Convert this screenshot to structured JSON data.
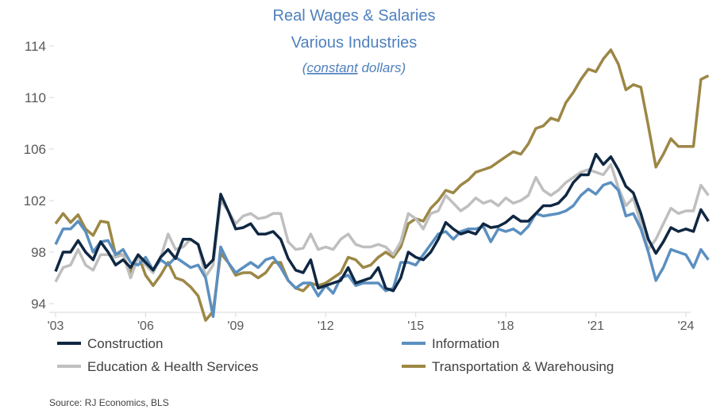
{
  "chart_data": {
    "type": "line",
    "title": "Real Wages & Salaries",
    "subtitle": "Various Industries",
    "note_underlined": "constant",
    "note_rest": " dollars)",
    "note_open": "(",
    "source": "Source: RJ Economics, BLS",
    "ylim": [
      92,
      114
    ],
    "yticks": [
      94,
      98,
      102,
      106,
      110,
      114
    ],
    "xlim": [
      2003,
      2024.3
    ],
    "xticks": [
      {
        "x": 2003,
        "label": "'03"
      },
      {
        "x": 2006,
        "label": "'06"
      },
      {
        "x": 2009,
        "label": "'09"
      },
      {
        "x": 2012,
        "label": "'12"
      },
      {
        "x": 2015,
        "label": "'15"
      },
      {
        "x": 2018,
        "label": "'18"
      },
      {
        "x": 2021,
        "label": "'21"
      },
      {
        "x": 2024,
        "label": "'24"
      }
    ],
    "x_start": 2003.0,
    "x_step": 0.25,
    "legend_position": "bottom",
    "grid": false,
    "series": [
      {
        "name": "Construction",
        "color": "#0f2742",
        "values": [
          96.5,
          98.0,
          98.0,
          98.9,
          98.0,
          97.4,
          98.8,
          98.0,
          97.0,
          97.4,
          96.8,
          97.8,
          97.2,
          96.6,
          97.6,
          98.2,
          97.5,
          99.0,
          99.0,
          98.6,
          96.8,
          97.4,
          102.5,
          101.2,
          99.8,
          99.9,
          100.2,
          99.4,
          99.4,
          99.6,
          99.0,
          97.5,
          96.6,
          96.4,
          97.4,
          95.2,
          95.4,
          95.6,
          95.8,
          96.8,
          95.6,
          95.8,
          96.0,
          96.8,
          95.2,
          95.0,
          96.0,
          98.0,
          97.6,
          97.4,
          98.0,
          99.0,
          100.3,
          99.8,
          99.4,
          99.6,
          99.4,
          100.2,
          99.9,
          100.0,
          100.3,
          100.8,
          100.4,
          100.4,
          101.0,
          101.6,
          101.6,
          101.8,
          102.4,
          103.4,
          104.0,
          104.0,
          105.6,
          104.8,
          105.4,
          104.4,
          103.1,
          102.6,
          101.0,
          99.0,
          97.9,
          98.8,
          99.9,
          99.6,
          99.8,
          99.6,
          101.3,
          100.4
        ]
      },
      {
        "name": "Information",
        "color": "#5b8fc0",
        "values": [
          98.6,
          99.8,
          99.8,
          100.4,
          99.6,
          98.0,
          98.8,
          98.9,
          97.8,
          98.2,
          97.2,
          97.0,
          97.6,
          96.6,
          97.4,
          97.0,
          97.6,
          97.2,
          96.8,
          97.0,
          96.0,
          93.0,
          98.4,
          97.2,
          96.4,
          96.8,
          97.2,
          96.8,
          97.4,
          97.6,
          96.8,
          95.8,
          95.2,
          95.6,
          95.6,
          94.6,
          95.4,
          94.8,
          96.0,
          96.2,
          95.4,
          95.6,
          95.6,
          95.6,
          95.0,
          95.2,
          97.2,
          97.2,
          97.0,
          97.8,
          98.6,
          99.4,
          99.6,
          99.0,
          99.6,
          99.8,
          99.8,
          100.0,
          98.8,
          99.8,
          99.6,
          99.8,
          99.4,
          100.0,
          101.0,
          100.8,
          100.9,
          101.0,
          101.2,
          101.6,
          102.4,
          102.9,
          102.5,
          103.2,
          103.4,
          102.8,
          100.8,
          101.0,
          99.8,
          98.0,
          95.8,
          96.8,
          98.2,
          98.0,
          97.8,
          96.8,
          98.2,
          97.4
        ]
      },
      {
        "name": "Education & Health Services",
        "color": "#bfbfbf",
        "values": [
          95.7,
          96.8,
          97.0,
          98.2,
          97.0,
          96.6,
          97.8,
          97.8,
          97.6,
          97.8,
          96.0,
          97.6,
          97.0,
          96.4,
          97.6,
          99.4,
          98.2,
          98.4,
          99.0,
          98.6,
          96.1,
          97.0,
          102.0,
          101.2,
          100.2,
          100.8,
          101.0,
          100.6,
          100.7,
          101.0,
          101.0,
          98.8,
          98.2,
          98.3,
          99.4,
          98.2,
          98.4,
          98.2,
          99.0,
          99.4,
          98.6,
          98.4,
          98.4,
          98.6,
          98.4,
          97.8,
          98.8,
          101.0,
          100.6,
          99.8,
          101.0,
          101.2,
          102.4,
          101.8,
          101.2,
          101.6,
          102.2,
          101.8,
          102.0,
          101.6,
          102.2,
          101.8,
          102.0,
          102.4,
          103.8,
          102.8,
          102.4,
          102.8,
          103.4,
          103.8,
          104.2,
          104.4,
          104.2,
          104.0,
          104.8,
          103.0,
          101.6,
          102.2,
          100.2,
          98.2,
          99.0,
          100.2,
          101.4,
          101.0,
          101.2,
          101.2,
          103.2,
          102.4
        ]
      },
      {
        "name": "Transportation & Warehousing",
        "color": "#9c8745",
        "values": [
          100.2,
          101.0,
          100.3,
          100.9,
          99.8,
          99.3,
          100.4,
          100.3,
          97.8,
          97.8,
          96.3,
          97.8,
          96.2,
          95.4,
          96.2,
          97.2,
          96.0,
          95.8,
          95.3,
          94.6,
          92.7,
          93.4,
          97.9,
          97.2,
          96.2,
          96.4,
          96.4,
          96.0,
          96.4,
          97.2,
          97.2,
          95.8,
          95.2,
          95.0,
          95.6,
          95.4,
          95.6,
          96.0,
          96.4,
          97.6,
          97.4,
          96.8,
          97.0,
          97.6,
          98.0,
          97.6,
          98.4,
          100.2,
          100.6,
          100.4,
          101.4,
          102.0,
          102.8,
          102.6,
          103.2,
          103.6,
          104.2,
          104.4,
          104.6,
          105.0,
          105.4,
          105.8,
          105.6,
          106.4,
          107.6,
          107.8,
          108.4,
          108.2,
          109.6,
          110.4,
          111.4,
          112.2,
          112.0,
          113.0,
          113.7,
          112.6,
          110.6,
          111.0,
          110.8,
          107.8,
          104.6,
          105.6,
          106.8,
          106.2,
          106.2,
          106.2,
          111.4,
          111.7
        ]
      }
    ]
  }
}
